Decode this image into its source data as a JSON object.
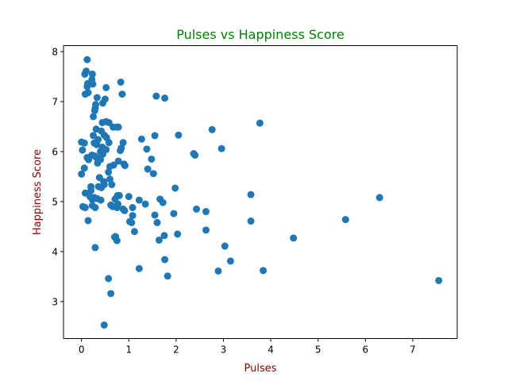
{
  "chart_data": {
    "type": "scatter",
    "title": "Pulses vs Happiness Score",
    "xlabel": "Pulses",
    "ylabel": "Happiness Score",
    "xlim": [
      -0.38,
      7.94
    ],
    "ylim": [
      2.26,
      8.12
    ],
    "xticks": [
      0,
      1,
      2,
      3,
      4,
      5,
      6,
      7
    ],
    "yticks": [
      3,
      4,
      5,
      6,
      7,
      8
    ],
    "grid": false,
    "legend": "none",
    "colors": {
      "title": "#008000",
      "axis_label": "#8b0000",
      "marker": "#1f77b4",
      "axis": "#000000"
    },
    "series": [
      {
        "name": "",
        "points": [
          [
            0.12,
            7.84
          ],
          [
            0.1,
            7.61
          ],
          [
            0.23,
            7.55
          ],
          [
            0.07,
            7.55
          ],
          [
            0.22,
            7.44
          ],
          [
            0.13,
            7.36
          ],
          [
            0.24,
            7.35
          ],
          [
            0.12,
            7.3
          ],
          [
            0.52,
            7.28
          ],
          [
            0.14,
            7.18
          ],
          [
            0.08,
            7.15
          ],
          [
            0.33,
            7.08
          ],
          [
            0.5,
            7.05
          ],
          [
            0.45,
            6.97
          ],
          [
            0.3,
            6.94
          ],
          [
            0.29,
            6.87
          ],
          [
            0.28,
            6.82
          ],
          [
            0.25,
            6.7
          ],
          [
            0.52,
            6.6
          ],
          [
            0.44,
            6.58
          ],
          [
            0.31,
            6.45
          ],
          [
            0.67,
            6.49
          ],
          [
            0.75,
            6.49
          ],
          [
            0.42,
            6.41
          ],
          [
            0.48,
            6.33
          ],
          [
            0.25,
            6.32
          ],
          [
            0.53,
            6.28
          ],
          [
            0.35,
            6.24
          ],
          [
            0.0,
            6.19
          ],
          [
            0.06,
            6.17
          ],
          [
            0.27,
            6.17
          ],
          [
            0.58,
            6.18
          ],
          [
            0.32,
            6.14
          ],
          [
            0.44,
            6.09
          ],
          [
            0.52,
            6.04
          ],
          [
            0.02,
            6.03
          ],
          [
            0.4,
            6.0
          ],
          [
            0.45,
            5.95
          ],
          [
            0.22,
            5.93
          ],
          [
            0.28,
            5.91
          ],
          [
            0.12,
            5.88
          ],
          [
            0.32,
            5.88
          ],
          [
            0.15,
            5.84
          ],
          [
            0.4,
            5.84
          ],
          [
            0.34,
            5.77
          ],
          [
            0.6,
            5.7
          ],
          [
            0.06,
            5.67
          ],
          [
            0.57,
            5.59
          ],
          [
            0.0,
            5.55
          ],
          [
            0.38,
            5.48
          ],
          [
            0.6,
            5.45
          ],
          [
            0.47,
            5.4
          ],
          [
            0.48,
            5.34
          ],
          [
            0.36,
            5.3
          ],
          [
            0.2,
            5.3
          ],
          [
            0.42,
            5.28
          ],
          [
            0.2,
            5.22
          ],
          [
            0.08,
            5.17
          ],
          [
            0.18,
            5.1
          ],
          [
            0.27,
            5.08
          ],
          [
            0.33,
            5.06
          ],
          [
            0.23,
            5.04
          ],
          [
            0.41,
            5.03
          ],
          [
            0.03,
            4.9
          ],
          [
            0.08,
            4.88
          ],
          [
            0.23,
            4.92
          ],
          [
            0.29,
            4.88
          ],
          [
            0.14,
            4.62
          ],
          [
            0.58,
            6.58
          ],
          [
            0.83,
            7.39
          ],
          [
            0.86,
            7.15
          ],
          [
            0.78,
            6.49
          ],
          [
            0.84,
            6.07
          ],
          [
            0.88,
            6.18
          ],
          [
            0.82,
            6.02
          ],
          [
            0.78,
            5.81
          ],
          [
            0.68,
            5.73
          ],
          [
            0.9,
            5.75
          ],
          [
            0.92,
            5.72
          ],
          [
            0.64,
            5.34
          ],
          [
            0.76,
            5.12
          ],
          [
            0.8,
            5.12
          ],
          [
            0.71,
            5.05
          ],
          [
            0.62,
            4.93
          ],
          [
            0.77,
            4.95
          ],
          [
            0.75,
            4.88
          ],
          [
            0.66,
            4.9
          ],
          [
            0.88,
            4.85
          ],
          [
            0.91,
            4.82
          ],
          [
            1.0,
            5.1
          ],
          [
            1.08,
            4.88
          ],
          [
            1.08,
            4.72
          ],
          [
            1.02,
            4.6
          ],
          [
            1.06,
            4.58
          ],
          [
            0.7,
            4.29
          ],
          [
            0.72,
            4.3
          ],
          [
            0.75,
            4.22
          ],
          [
            1.12,
            4.4
          ],
          [
            0.29,
            4.08
          ],
          [
            1.22,
            3.66
          ],
          [
            0.57,
            3.46
          ],
          [
            0.62,
            3.16
          ],
          [
            0.48,
            2.53
          ],
          [
            1.27,
            6.25
          ],
          [
            1.38,
            6.05
          ],
          [
            1.55,
            6.32
          ],
          [
            1.48,
            5.85
          ],
          [
            1.4,
            5.65
          ],
          [
            1.52,
            5.56
          ],
          [
            1.22,
            5.03
          ],
          [
            1.35,
            4.95
          ],
          [
            1.55,
            4.73
          ],
          [
            1.6,
            4.58
          ],
          [
            1.58,
            7.11
          ],
          [
            1.76,
            7.07
          ],
          [
            1.66,
            5.05
          ],
          [
            1.72,
            4.98
          ],
          [
            1.95,
            4.76
          ],
          [
            1.64,
            4.23
          ],
          [
            1.75,
            4.32
          ],
          [
            1.76,
            3.84
          ],
          [
            1.82,
            3.51
          ],
          [
            2.05,
            6.33
          ],
          [
            1.98,
            5.27
          ],
          [
            2.03,
            4.35
          ],
          [
            2.37,
            5.96
          ],
          [
            2.4,
            5.93
          ],
          [
            2.43,
            4.85
          ],
          [
            2.63,
            4.8
          ],
          [
            2.63,
            4.43
          ],
          [
            2.76,
            6.44
          ],
          [
            2.96,
            6.06
          ],
          [
            3.03,
            4.11
          ],
          [
            3.15,
            3.81
          ],
          [
            2.89,
            3.61
          ],
          [
            3.77,
            6.57
          ],
          [
            3.58,
            5.14
          ],
          [
            3.58,
            4.61
          ],
          [
            3.84,
            3.62
          ],
          [
            4.48,
            4.27
          ],
          [
            5.58,
            4.64
          ],
          [
            6.3,
            5.08
          ],
          [
            7.55,
            3.42
          ]
        ]
      }
    ]
  }
}
